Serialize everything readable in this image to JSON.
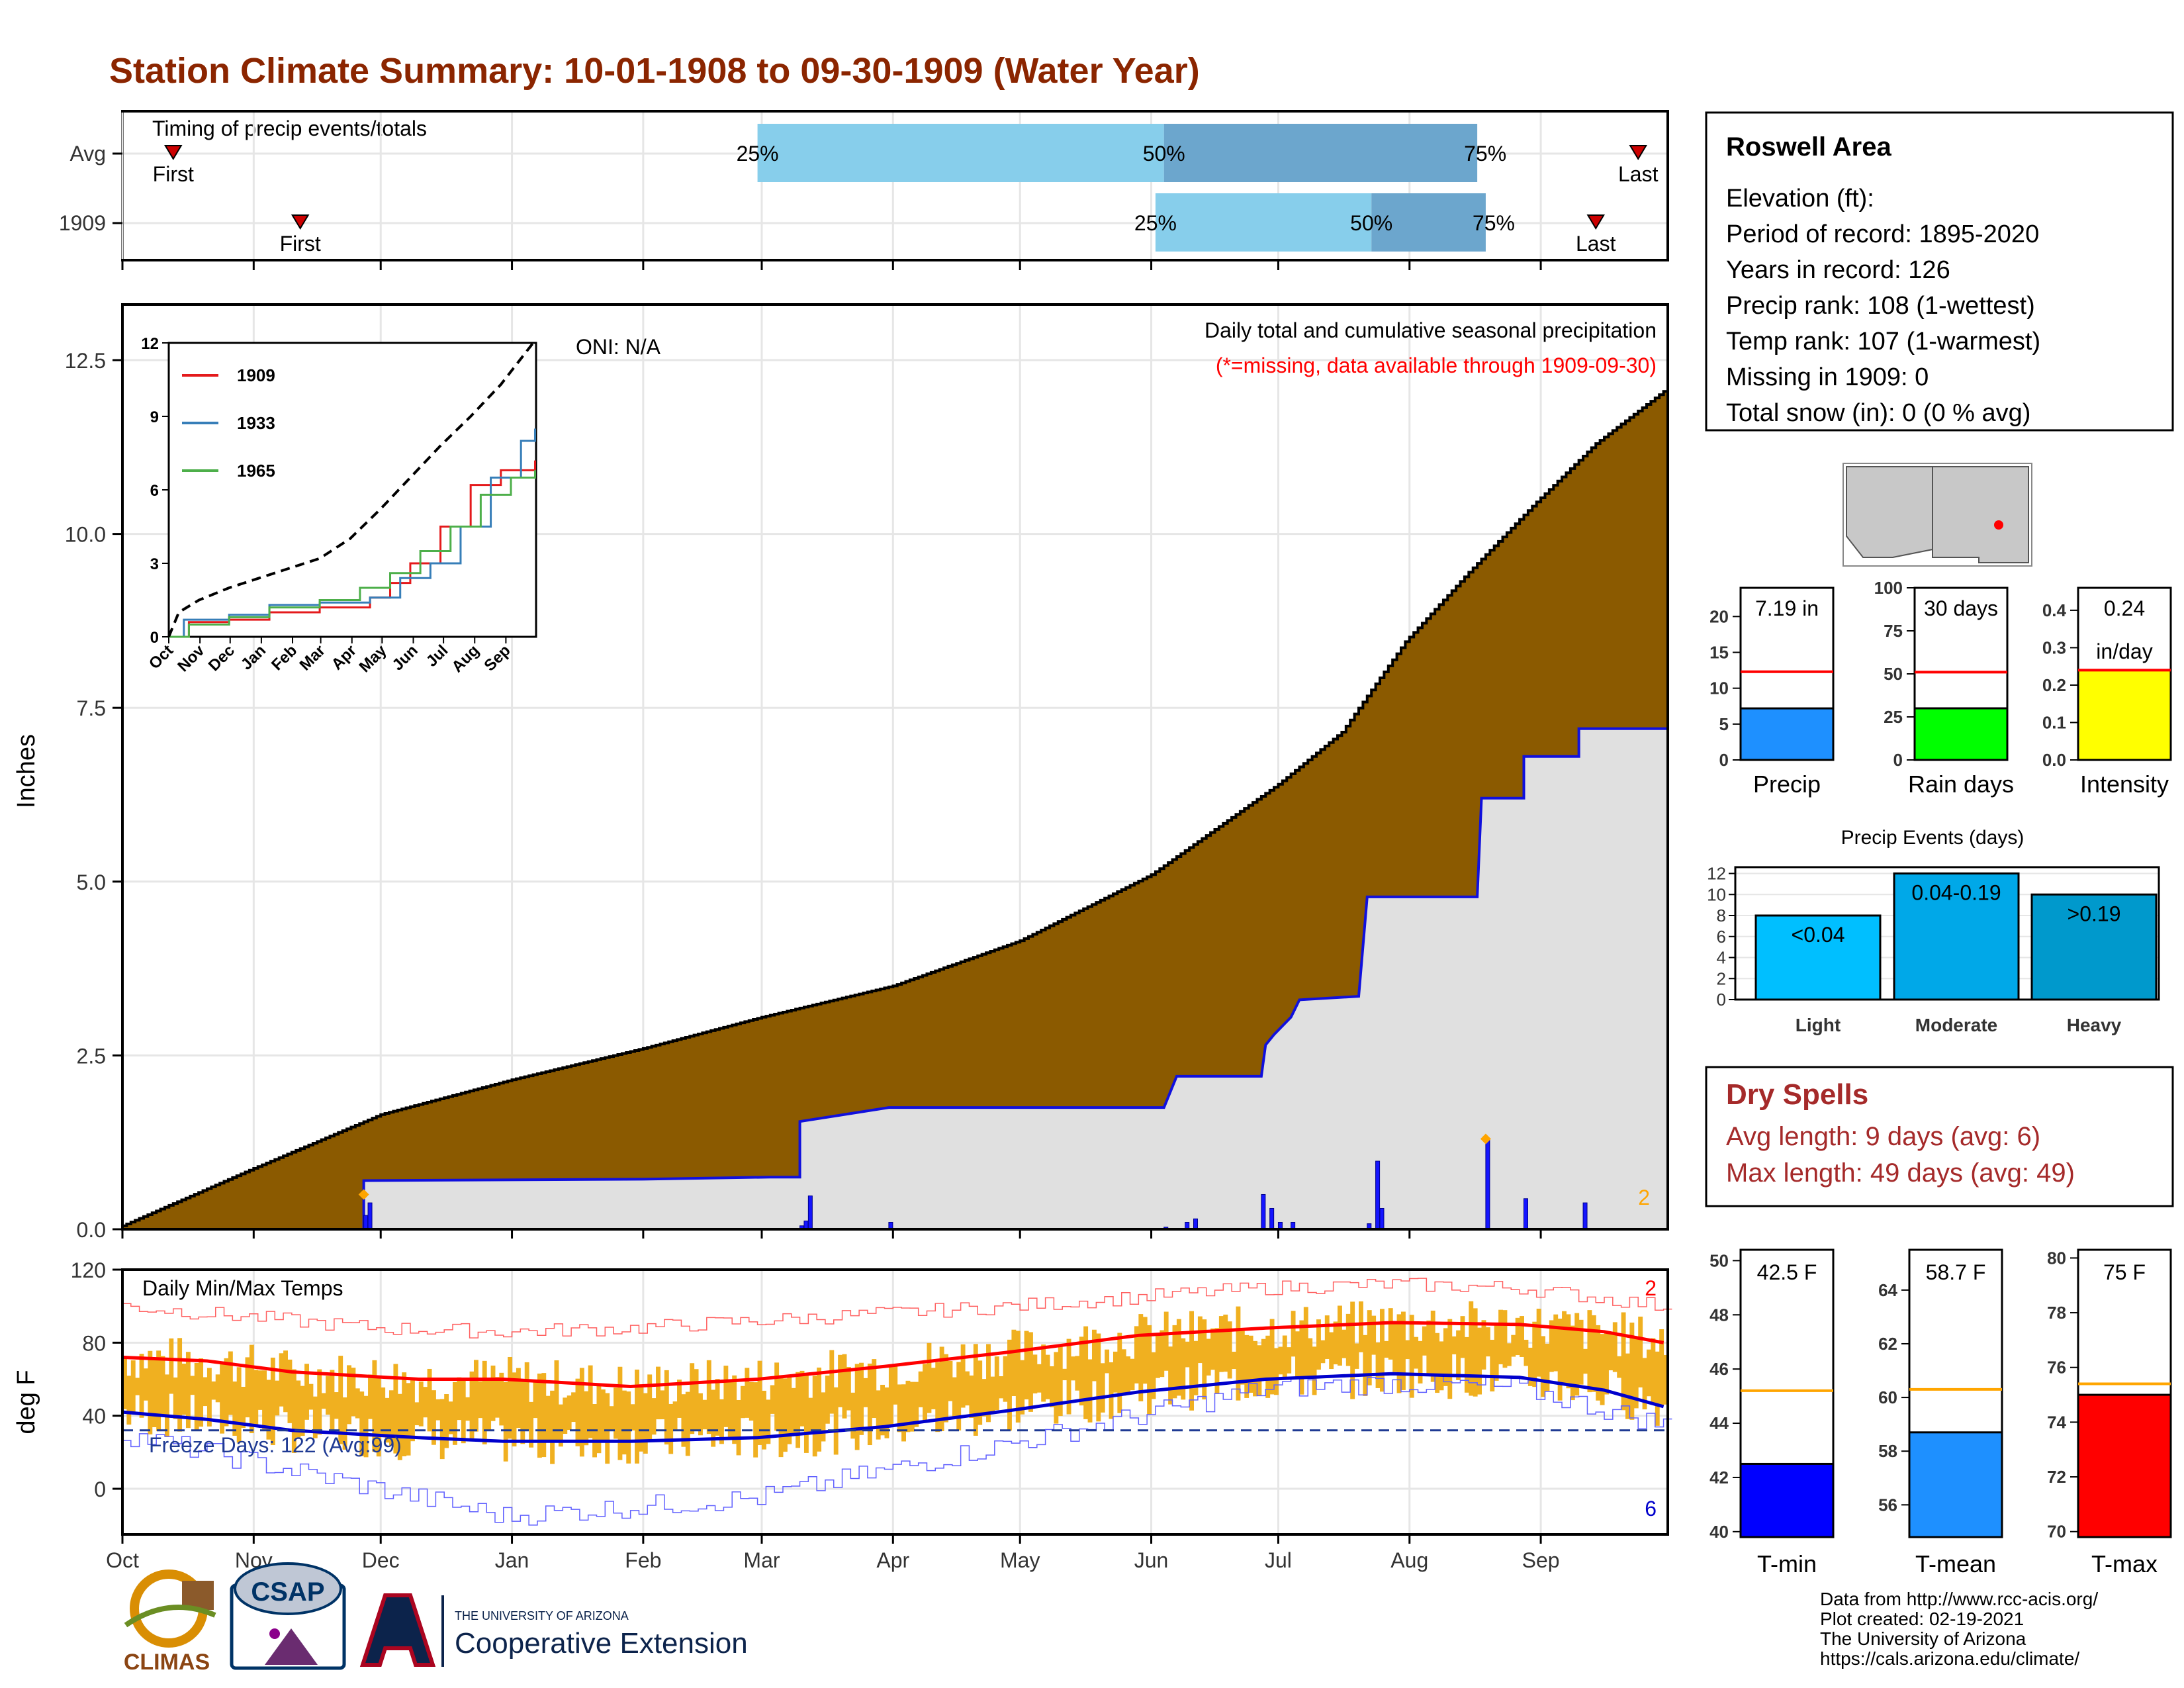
{
  "title": "Station Climate Summary: 10-01-1908 to 09-30-1909 (Water Year)",
  "colors": {
    "title": "#8B2500",
    "precip_fill": "#8B5A00",
    "avg_fill": "#E0E0E0",
    "blue_line": "#1010DD",
    "light_bar": "#87CEEB",
    "dark_bar": "#6CA6CD",
    "temp_band": "#F0B020",
    "red": "#FF0000",
    "dry_text": "#A52A2A"
  },
  "months": [
    "Oct",
    "Nov",
    "Dec",
    "Jan",
    "Feb",
    "Mar",
    "Apr",
    "May",
    "Jun",
    "Jul",
    "Aug",
    "Sep"
  ],
  "timing": {
    "title": "Timing of precip events/totals",
    "rows": [
      {
        "label": "Avg",
        "first_label": "First",
        "last_label": "Last",
        "first_day": 12,
        "last_day": 358,
        "p25": 150,
        "p50": 246,
        "p75": 320,
        "p25_label": "25%",
        "p50_label": "50%",
        "p75_label": "75%"
      },
      {
        "label": "1909",
        "first_label": "First",
        "last_label": "Last",
        "first_day": 42,
        "last_day": 348,
        "p25": 244,
        "p50": 295,
        "p75": 322,
        "p25_label": "25%",
        "p50_label": "50%",
        "p75_label": "75%"
      }
    ]
  },
  "precip_panel": {
    "ylabel": "Inches",
    "y_ticks": [
      "0.0",
      "2.5",
      "5.0",
      "7.5",
      "10.0",
      "12.5"
    ],
    "ymax": 13.3,
    "oni": "ONI: N/A",
    "subtitle": "Daily total and cumulative seasonal precipitation",
    "missing_note": "(*=missing, data available through 1909-09-30)",
    "count_label": "2",
    "avg_cumulative": [
      [
        0,
        0.05
      ],
      [
        30,
        0.85
      ],
      [
        61,
        1.65
      ],
      [
        92,
        2.15
      ],
      [
        123,
        2.6
      ],
      [
        151,
        3.05
      ],
      [
        182,
        3.5
      ],
      [
        212,
        4.15
      ],
      [
        243,
        5.1
      ],
      [
        258,
        5.75
      ],
      [
        273,
        6.4
      ],
      [
        288,
        7.15
      ],
      [
        303,
        8.45
      ],
      [
        318,
        9.45
      ],
      [
        333,
        10.4
      ],
      [
        348,
        11.3
      ],
      [
        364,
        12.05
      ]
    ],
    "cumulative_1909": [
      [
        0,
        0
      ],
      [
        40,
        0
      ],
      [
        57,
        0
      ],
      [
        57,
        0.7
      ],
      [
        123,
        0.72
      ],
      [
        153,
        0.75
      ],
      [
        160,
        0.75
      ],
      [
        160,
        1.55
      ],
      [
        181,
        1.75
      ],
      [
        246,
        1.75
      ],
      [
        249,
        2.2
      ],
      [
        269,
        2.2
      ],
      [
        270,
        2.65
      ],
      [
        272,
        2.8
      ],
      [
        276,
        3.05
      ],
      [
        278,
        3.3
      ],
      [
        292,
        3.35
      ],
      [
        294,
        4.78
      ],
      [
        320,
        4.78
      ],
      [
        321,
        6.2
      ],
      [
        331,
        6.2
      ],
      [
        331,
        6.8
      ],
      [
        344,
        6.8
      ],
      [
        344,
        7.2
      ],
      [
        364,
        7.2
      ]
    ],
    "daily_bars": [
      [
        57,
        0.2
      ],
      [
        58,
        0.38
      ],
      [
        160,
        0.05
      ],
      [
        161,
        0.12
      ],
      [
        162,
        0.48
      ],
      [
        181,
        0.1
      ],
      [
        246,
        0.03
      ],
      [
        251,
        0.1
      ],
      [
        253,
        0.15
      ],
      [
        269,
        0.5
      ],
      [
        271,
        0.3
      ],
      [
        273,
        0.1
      ],
      [
        276,
        0.1
      ],
      [
        294,
        0.08
      ],
      [
        296,
        0.98
      ],
      [
        297,
        0.3
      ],
      [
        322,
        1.28
      ],
      [
        331,
        0.44
      ],
      [
        345,
        0.38
      ]
    ],
    "markers": [
      [
        57,
        0.5
      ],
      [
        322,
        1.3
      ]
    ]
  },
  "inset": {
    "y_ticks": [
      "0",
      "3",
      "6",
      "9",
      "12"
    ],
    "x_ticks": [
      "Oct",
      "Nov",
      "Dec",
      "Jan",
      "Feb",
      "Mar",
      "Apr",
      "May",
      "Jun",
      "Jul",
      "Aug",
      "Sep"
    ],
    "series": [
      {
        "name": "1909",
        "color": "#E41A1C",
        "points": [
          [
            0,
            0
          ],
          [
            20,
            0.6
          ],
          [
            60,
            0.7
          ],
          [
            100,
            1.0
          ],
          [
            150,
            1.2
          ],
          [
            200,
            1.6
          ],
          [
            220,
            2.2
          ],
          [
            240,
            3.0
          ],
          [
            270,
            4.5
          ],
          [
            300,
            6.2
          ],
          [
            330,
            6.8
          ],
          [
            364,
            7.2
          ]
        ]
      },
      {
        "name": "1933",
        "color": "#377EB8",
        "points": [
          [
            0,
            0
          ],
          [
            15,
            0.7
          ],
          [
            60,
            0.9
          ],
          [
            100,
            1.3
          ],
          [
            150,
            1.4
          ],
          [
            200,
            1.6
          ],
          [
            230,
            2.4
          ],
          [
            260,
            3.0
          ],
          [
            290,
            4.5
          ],
          [
            320,
            6.5
          ],
          [
            350,
            8.0
          ],
          [
            364,
            8.5
          ]
        ]
      },
      {
        "name": "1965",
        "color": "#4DAF4A",
        "points": [
          [
            0,
            0
          ],
          [
            20,
            0.5
          ],
          [
            60,
            0.8
          ],
          [
            100,
            1.2
          ],
          [
            150,
            1.5
          ],
          [
            190,
            2.0
          ],
          [
            220,
            2.6
          ],
          [
            250,
            3.5
          ],
          [
            280,
            4.5
          ],
          [
            310,
            5.8
          ],
          [
            340,
            6.5
          ],
          [
            364,
            6.8
          ]
        ]
      }
    ],
    "avg_line": [
      [
        0,
        0
      ],
      [
        10,
        1.0
      ],
      [
        30,
        1.5
      ],
      [
        60,
        2.0
      ],
      [
        90,
        2.4
      ],
      [
        120,
        2.8
      ],
      [
        150,
        3.2
      ],
      [
        180,
        4.0
      ],
      [
        210,
        5.2
      ],
      [
        240,
        6.5
      ],
      [
        270,
        7.8
      ],
      [
        300,
        9.0
      ],
      [
        330,
        10.3
      ],
      [
        364,
        12.1
      ]
    ]
  },
  "temp_panel": {
    "ylabel": "deg F",
    "title": "Daily Min/Max Temps",
    "y_ticks": [
      "0",
      "40",
      "80",
      "120"
    ],
    "freeze_label": "Freeze Days: 122 (Avg:99)",
    "count_top": "2",
    "count_bottom": "6",
    "avg_max": [
      [
        0,
        72
      ],
      [
        20,
        70
      ],
      [
        40,
        64
      ],
      [
        70,
        60
      ],
      [
        90,
        60
      ],
      [
        120,
        56
      ],
      [
        150,
        60
      ],
      [
        180,
        67
      ],
      [
        210,
        75
      ],
      [
        240,
        84
      ],
      [
        270,
        88
      ],
      [
        300,
        91
      ],
      [
        330,
        90
      ],
      [
        350,
        86
      ],
      [
        364,
        80
      ]
    ],
    "avg_min": [
      [
        0,
        42
      ],
      [
        20,
        38
      ],
      [
        40,
        32
      ],
      [
        70,
        28
      ],
      [
        90,
        26
      ],
      [
        120,
        26
      ],
      [
        150,
        28
      ],
      [
        180,
        34
      ],
      [
        210,
        43
      ],
      [
        240,
        53
      ],
      [
        270,
        60
      ],
      [
        300,
        63
      ],
      [
        330,
        61
      ],
      [
        350,
        54
      ],
      [
        364,
        45
      ]
    ],
    "max_line": [
      [
        0,
        100
      ],
      [
        30,
        94
      ],
      [
        60,
        88
      ],
      [
        90,
        86
      ],
      [
        120,
        88
      ],
      [
        150,
        92
      ],
      [
        180,
        96
      ],
      [
        210,
        100
      ],
      [
        240,
        105
      ],
      [
        270,
        110
      ],
      [
        300,
        112
      ],
      [
        330,
        110
      ],
      [
        364,
        100
      ]
    ],
    "min_line": [
      [
        0,
        30
      ],
      [
        30,
        15
      ],
      [
        60,
        0
      ],
      [
        90,
        -15
      ],
      [
        120,
        -10
      ],
      [
        150,
        -5
      ],
      [
        180,
        10
      ],
      [
        210,
        25
      ],
      [
        240,
        40
      ],
      [
        270,
        55
      ],
      [
        300,
        58
      ],
      [
        330,
        55
      ],
      [
        364,
        35
      ]
    ]
  },
  "station": {
    "name": "Roswell Area",
    "lines": [
      "Elevation (ft):",
      "Period of record: 1895-2020",
      "Years in record: 126",
      "Precip rank: 108 (1-wettest)",
      "Temp rank: 107 (1-warmest)",
      "Missing in 1909: 0",
      "Total snow (in): 0 (0 % avg)"
    ]
  },
  "summary_bars": [
    {
      "label": "Precip",
      "value": 7.19,
      "avg": 12.3,
      "max": 24,
      "ticks": [
        "0",
        "5",
        "10",
        "15",
        "20"
      ],
      "tick_values": [
        0,
        5,
        10,
        15,
        20
      ],
      "caption": "7.19 in",
      "color": "#1E90FF"
    },
    {
      "label": "Rain days",
      "value": 30,
      "avg": 51,
      "max": 100,
      "ticks": [
        "0",
        "25",
        "50",
        "75",
        "100"
      ],
      "tick_values": [
        0,
        25,
        50,
        75,
        100
      ],
      "caption": "30 days",
      "color": "#00FF00"
    },
    {
      "label": "Intensity",
      "value": 0.24,
      "avg": 0.24,
      "max": 0.46,
      "ticks": [
        "0.0",
        "0.1",
        "0.2",
        "0.3",
        "0.4"
      ],
      "tick_values": [
        0,
        0.1,
        0.2,
        0.3,
        0.4
      ],
      "caption": "0.24",
      "caption2": "in/day",
      "color": "#FFFF00"
    }
  ],
  "precip_events": {
    "title": "Precip Events (days)",
    "y_ticks": [
      "0",
      "2",
      "4",
      "6",
      "8",
      "10",
      "12"
    ],
    "bars": [
      {
        "label": "Light",
        "range": "<0.04",
        "value": 8,
        "color": "#00BFFF"
      },
      {
        "label": "Moderate",
        "range": "0.04-0.19",
        "value": 12,
        "color": "#00A8E8"
      },
      {
        "label": "Heavy",
        "range": ">0.19",
        "value": 10,
        "color": "#0099CC"
      }
    ]
  },
  "dry_spells": {
    "title": "Dry Spells",
    "avg": "Avg length: 9 days (avg: 6)",
    "max": "Max length: 49 days (avg: 49)"
  },
  "temp_bars": [
    {
      "label": "T-min",
      "value": 42.5,
      "avg": 45.2,
      "min": 39.8,
      "max": 50.4,
      "ticks": [
        "40",
        "42",
        "44",
        "46",
        "48",
        "50"
      ],
      "tick_values": [
        40,
        42,
        44,
        46,
        48,
        50
      ],
      "caption": "42.5 F",
      "color": "#0000FF"
    },
    {
      "label": "T-mean",
      "value": 58.7,
      "avg": 60.3,
      "min": 54.8,
      "max": 65.5,
      "ticks": [
        "56",
        "58",
        "60",
        "62",
        "64"
      ],
      "tick_values": [
        56,
        58,
        60,
        62,
        64
      ],
      "caption": "58.7 F",
      "color": "#1E90FF"
    },
    {
      "label": "T-max",
      "value": 75,
      "avg": 75.4,
      "min": 69.8,
      "max": 80.3,
      "ticks": [
        "70",
        "72",
        "74",
        "76",
        "78",
        "80"
      ],
      "tick_values": [
        70,
        72,
        74,
        76,
        78,
        80
      ],
      "caption": "75 F",
      "color": "#FF0000"
    }
  ],
  "footer": {
    "credits": [
      "Data from http://www.rcc-acis.org/",
      "Plot created: 02-19-2021",
      "The University of Arizona",
      "https://cals.arizona.edu/climate/"
    ],
    "climas": "CLIMAS",
    "csap": "CSAP",
    "ua_small": "THE UNIVERSITY OF ARIZONA",
    "coop": "Cooperative Extension"
  }
}
